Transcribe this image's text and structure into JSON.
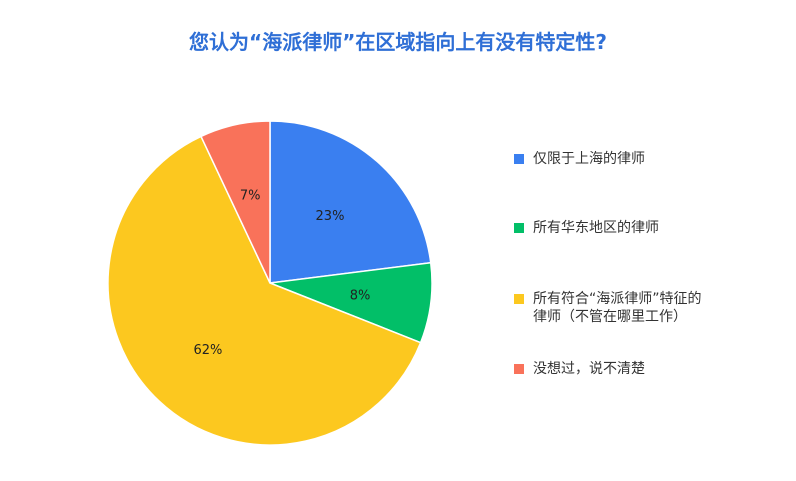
{
  "chart_data": {
    "type": "pie",
    "title": "您认为“海派律师”在区域指向上有没有特定性?",
    "legend_position": "right",
    "slices": [
      {
        "label": "仅限于上海的律师",
        "value": 23,
        "value_label": "23%",
        "color": "#3a7ff0"
      },
      {
        "label": "所有华东地区的律师",
        "value": 8,
        "value_label": "8%",
        "color": "#02bf68"
      },
      {
        "label": "所有符合“海派律师”特征的律师（不管在哪里工作）",
        "value": 62,
        "value_label": "62%",
        "color": "#fcc81f"
      },
      {
        "label": "没想过，说不清楚",
        "value": 7,
        "value_label": "7%",
        "color": "#f9725a"
      }
    ]
  }
}
